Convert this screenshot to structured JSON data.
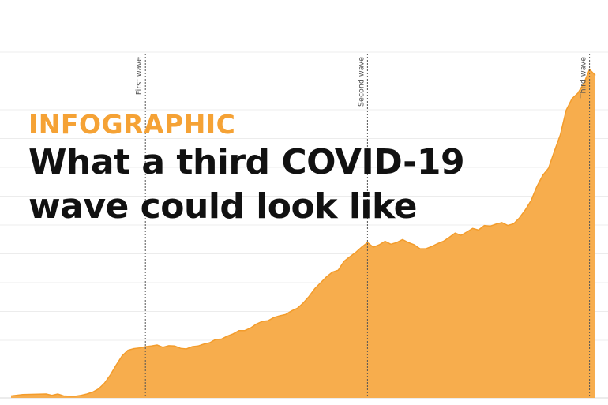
{
  "header": {
    "kicker": "INFOGRAPHIC",
    "title_line1": "What a third COVID-19",
    "title_line2": "wave could look like"
  },
  "chart_data": {
    "type": "area",
    "title": "",
    "xlabel": "",
    "ylabel": "",
    "grid": true,
    "color": "#f7ad4d",
    "line_color": "#f39c2b",
    "y_max": 100,
    "markers": [
      {
        "label": "First wave",
        "x": 0.23
      },
      {
        "label": "Second wave",
        "x": 0.61
      },
      {
        "label": "Third wave",
        "x": 0.99
      }
    ],
    "series": [
      {
        "values": [
          [
            0.0,
            0.6
          ],
          [
            0.02,
            1.0
          ],
          [
            0.04,
            1.1
          ],
          [
            0.06,
            1.2
          ],
          [
            0.07,
            0.8
          ],
          [
            0.08,
            1.2
          ],
          [
            0.09,
            0.6
          ],
          [
            0.1,
            0.5
          ],
          [
            0.11,
            0.5
          ],
          [
            0.12,
            0.8
          ],
          [
            0.13,
            1.2
          ],
          [
            0.14,
            1.8
          ],
          [
            0.15,
            2.8
          ],
          [
            0.16,
            4.5
          ],
          [
            0.17,
            7.0
          ],
          [
            0.18,
            10.0
          ],
          [
            0.19,
            12.8
          ],
          [
            0.2,
            14.5
          ],
          [
            0.21,
            15.0
          ],
          [
            0.22,
            15.2
          ],
          [
            0.23,
            15.6
          ],
          [
            0.24,
            15.8
          ],
          [
            0.25,
            16.1
          ],
          [
            0.26,
            15.4
          ],
          [
            0.27,
            15.9
          ],
          [
            0.28,
            15.8
          ],
          [
            0.29,
            15.1
          ],
          [
            0.3,
            14.9
          ],
          [
            0.31,
            15.6
          ],
          [
            0.32,
            15.8
          ],
          [
            0.33,
            16.4
          ],
          [
            0.34,
            16.8
          ],
          [
            0.35,
            17.8
          ],
          [
            0.36,
            17.9
          ],
          [
            0.37,
            18.8
          ],
          [
            0.38,
            19.5
          ],
          [
            0.39,
            20.5
          ],
          [
            0.4,
            20.5
          ],
          [
            0.41,
            21.3
          ],
          [
            0.42,
            22.5
          ],
          [
            0.43,
            23.3
          ],
          [
            0.44,
            23.5
          ],
          [
            0.45,
            24.5
          ],
          [
            0.46,
            25.0
          ],
          [
            0.47,
            25.4
          ],
          [
            0.48,
            26.5
          ],
          [
            0.49,
            27.3
          ],
          [
            0.5,
            28.9
          ],
          [
            0.51,
            30.9
          ],
          [
            0.52,
            33.3
          ],
          [
            0.53,
            35.1
          ],
          [
            0.54,
            36.9
          ],
          [
            0.55,
            38.3
          ],
          [
            0.56,
            38.9
          ],
          [
            0.57,
            41.6
          ],
          [
            0.58,
            43.0
          ],
          [
            0.59,
            44.3
          ],
          [
            0.6,
            45.9
          ],
          [
            0.61,
            47.3
          ],
          [
            0.62,
            45.9
          ],
          [
            0.63,
            46.6
          ],
          [
            0.64,
            47.7
          ],
          [
            0.65,
            46.8
          ],
          [
            0.66,
            47.3
          ],
          [
            0.67,
            48.2
          ],
          [
            0.68,
            47.3
          ],
          [
            0.69,
            46.6
          ],
          [
            0.7,
            45.4
          ],
          [
            0.71,
            45.4
          ],
          [
            0.72,
            46.1
          ],
          [
            0.73,
            47.0
          ],
          [
            0.74,
            47.7
          ],
          [
            0.75,
            48.9
          ],
          [
            0.76,
            50.2
          ],
          [
            0.77,
            49.5
          ],
          [
            0.78,
            50.5
          ],
          [
            0.79,
            51.6
          ],
          [
            0.8,
            51.1
          ],
          [
            0.81,
            52.5
          ],
          [
            0.82,
            52.3
          ],
          [
            0.83,
            52.9
          ],
          [
            0.84,
            53.4
          ],
          [
            0.85,
            52.5
          ],
          [
            0.86,
            53.0
          ],
          [
            0.87,
            54.8
          ],
          [
            0.88,
            57.2
          ],
          [
            0.89,
            60.1
          ],
          [
            0.9,
            64.4
          ],
          [
            0.91,
            67.8
          ],
          [
            0.92,
            70.0
          ],
          [
            0.93,
            75.2
          ],
          [
            0.94,
            80.1
          ],
          [
            0.95,
            87.6
          ],
          [
            0.96,
            91.1
          ],
          [
            0.97,
            92.8
          ],
          [
            0.98,
            95.7
          ],
          [
            0.99,
            100.0
          ],
          [
            1.0,
            98.2
          ]
        ]
      }
    ]
  }
}
